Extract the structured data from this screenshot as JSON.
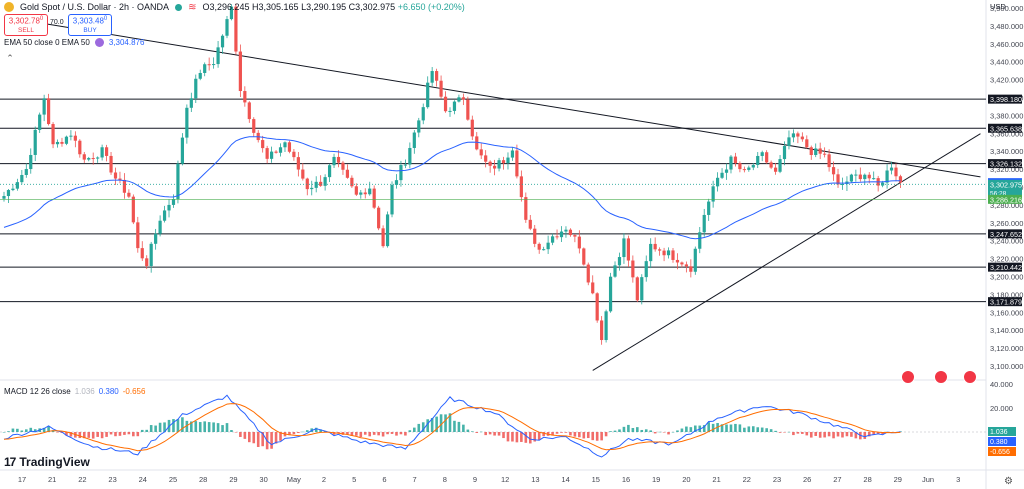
{
  "header": {
    "symbol_title": "Gold Spot / U.S. Dollar · 2h · OANDA",
    "open": "O3,296.245",
    "high": "H3,305.165",
    "low": "L3,290.195",
    "close": "C3,302.975",
    "change": "+6.650 (+0.20%)",
    "status_icon": "equals-icon"
  },
  "trade": {
    "sell_price": "3,302.78",
    "sell_sup": "0",
    "sell_label": "SELL",
    "spread": "70.0",
    "buy_price": "3,303.48",
    "buy_sup": "0",
    "buy_label": "BUY"
  },
  "ema_legend": {
    "label": "EMA 50 close 0 EMA 50",
    "value": "3,304.876",
    "color": "#9c6ade"
  },
  "macd_legend": {
    "label": "MACD 12 26 close",
    "v1": "1.036",
    "v2": "0.380",
    "v3": "-0.656"
  },
  "currency": "USD",
  "logo_text": "TradingView",
  "colors": {
    "up": "#26a69a",
    "down": "#ef5350",
    "ema": "#2962ff",
    "macd": "#2962ff",
    "signal": "#ff6d00",
    "hist_up": "#26a69a",
    "hist_down": "#ef5350",
    "trend": "#131722"
  },
  "chart_data": [
    {
      "type": "candlestick",
      "title": "Gold Spot / U.S. Dollar · 2h · OANDA",
      "ylabel": "USD",
      "ylim": [
        3090,
        3510
      ],
      "y_ticks": [
        3100,
        3120,
        3140,
        3160,
        3180,
        3200,
        3220,
        3240,
        3260,
        3280,
        3300,
        3320,
        3340,
        3360,
        3380,
        3400,
        3420,
        3440,
        3460,
        3480,
        3500
      ],
      "y_tick_labels": [
        "3,100.000",
        "3,120.000",
        "3,140.000",
        "3,160.000",
        "3,180.000",
        "3,200.000",
        "3,220.000",
        "3,240.000",
        "3,260.000",
        "3,280.000",
        "3,300.000",
        "3,320.000",
        "3,340.000",
        "3,360.000",
        "3,380.000",
        "3,400.000",
        "3,420.000",
        "3,440.000",
        "3,460.000",
        "3,480.000",
        "3,500.000"
      ],
      "x_labels": [
        "17",
        "21",
        "22",
        "23",
        "24",
        "25",
        "28",
        "29",
        "30",
        "May",
        "2",
        "5",
        "6",
        "7",
        "8",
        "9",
        "12",
        "13",
        "14",
        "15",
        "16",
        "19",
        "20",
        "21",
        "22",
        "23",
        "26",
        "27",
        "28",
        "29",
        "Jun",
        "3",
        "4"
      ],
      "anchors": [
        [
          0,
          3290
        ],
        [
          5,
          3320
        ],
        [
          9,
          3400
        ],
        [
          11,
          3345
        ],
        [
          15,
          3360
        ],
        [
          18,
          3330
        ],
        [
          22,
          3340
        ],
        [
          25,
          3310
        ],
        [
          28,
          3290
        ],
        [
          30,
          3230
        ],
        [
          32,
          3215
        ],
        [
          35,
          3265
        ],
        [
          38,
          3290
        ],
        [
          41,
          3390
        ],
        [
          44,
          3430
        ],
        [
          47,
          3440
        ],
        [
          51,
          3500
        ],
        [
          53,
          3410
        ],
        [
          56,
          3365
        ],
        [
          59,
          3330
        ],
        [
          63,
          3350
        ],
        [
          66,
          3320
        ],
        [
          68,
          3300
        ],
        [
          71,
          3305
        ],
        [
          74,
          3330
        ],
        [
          76,
          3315
        ],
        [
          79,
          3290
        ],
        [
          82,
          3300
        ],
        [
          85,
          3235
        ],
        [
          87,
          3300
        ],
        [
          90,
          3330
        ],
        [
          93,
          3375
        ],
        [
          96,
          3430
        ],
        [
          99,
          3385
        ],
        [
          103,
          3400
        ],
        [
          106,
          3340
        ],
        [
          109,
          3320
        ],
        [
          112,
          3330
        ],
        [
          114,
          3345
        ],
        [
          117,
          3260
        ],
        [
          120,
          3230
        ],
        [
          123,
          3245
        ],
        [
          126,
          3255
        ],
        [
          129,
          3235
        ],
        [
          132,
          3180
        ],
        [
          134,
          3130
        ],
        [
          136,
          3200
        ],
        [
          139,
          3240
        ],
        [
          142,
          3175
        ],
        [
          145,
          3235
        ],
        [
          148,
          3228
        ],
        [
          151,
          3220
        ],
        [
          154,
          3210
        ],
        [
          157,
          3270
        ],
        [
          160,
          3310
        ],
        [
          163,
          3330
        ],
        [
          166,
          3315
        ],
        [
          170,
          3335
        ],
        [
          173,
          3315
        ],
        [
          176,
          3355
        ],
        [
          178,
          3355
        ],
        [
          181,
          3340
        ],
        [
          184,
          3335
        ],
        [
          187,
          3300
        ],
        [
          190,
          3310
        ],
        [
          193,
          3315
        ],
        [
          196,
          3300
        ],
        [
          199,
          3325
        ],
        [
          201,
          3305
        ]
      ],
      "price_lines": [
        {
          "value": 3398.18,
          "label": "3,398.180",
          "kind": "support-resistance"
        },
        {
          "value": 3365.638,
          "label": "3,365.638",
          "kind": "support-resistance"
        },
        {
          "value": 3326.132,
          "label": "3,326.132",
          "kind": "support-resistance"
        },
        {
          "value": 3247.652,
          "label": "3,247.652",
          "kind": "support-resistance"
        },
        {
          "value": 3210.442,
          "label": "3,210.442",
          "kind": "support-resistance"
        },
        {
          "value": 3171.879,
          "label": "3,171.879",
          "kind": "support-resistance"
        }
      ],
      "price_badges": [
        {
          "value": 3304.876,
          "label": "3,304.876",
          "kind": "ema"
        },
        {
          "value": 3302.975,
          "label": "3,302.975",
          "sub": "56:28",
          "kind": "last"
        },
        {
          "value": 3286.216,
          "label": "3,286.216",
          "kind": "green"
        }
      ],
      "trendlines": [
        {
          "name": "descending",
          "from": [
            0,
            3490
          ],
          "to": [
            201,
            3326
          ]
        },
        {
          "name": "ascending",
          "from": [
            132,
            3095
          ],
          "to": [
            201,
            3305
          ]
        }
      ],
      "ema": {
        "name": "EMA 50",
        "period": 50,
        "last": 3304.876
      }
    },
    {
      "type": "macd",
      "title": "MACD 12 26 close",
      "ylim": [
        -25,
        42
      ],
      "y_ticks": [
        40,
        20
      ],
      "y_tick_labels": [
        "40.000",
        "20.000"
      ],
      "badges": [
        {
          "value": 1.036,
          "label": "1.036",
          "kind": "histogram"
        },
        {
          "value": 0.38,
          "label": "0.380",
          "kind": "macd"
        },
        {
          "value": -0.656,
          "label": "-0.656",
          "kind": "signal"
        }
      ],
      "anchors": [
        [
          0,
          -5
        ],
        [
          10,
          4
        ],
        [
          20,
          -12
        ],
        [
          30,
          -18
        ],
        [
          40,
          14
        ],
        [
          50,
          30
        ],
        [
          60,
          -10
        ],
        [
          70,
          2
        ],
        [
          80,
          -8
        ],
        [
          90,
          -14
        ],
        [
          100,
          28
        ],
        [
          110,
          16
        ],
        [
          118,
          -6
        ],
        [
          126,
          -4
        ],
        [
          134,
          -20
        ],
        [
          140,
          -6
        ],
        [
          150,
          -10
        ],
        [
          160,
          12
        ],
        [
          170,
          22
        ],
        [
          178,
          16
        ],
        [
          186,
          6
        ],
        [
          194,
          -4
        ],
        [
          201,
          1
        ]
      ]
    }
  ]
}
